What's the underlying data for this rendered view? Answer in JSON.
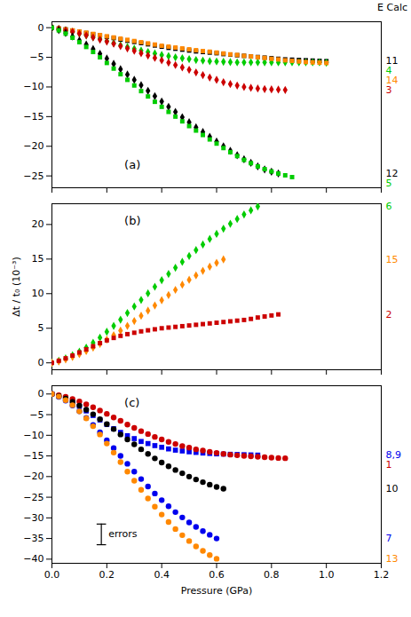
{
  "chart_data": [
    {
      "type": "scatter",
      "title": "E Calc",
      "x": [
        0.0,
        0.025,
        0.05,
        0.075,
        0.1,
        0.125,
        0.15,
        0.175,
        0.2,
        0.225,
        0.25,
        0.275,
        0.3,
        0.325,
        0.35,
        0.375,
        0.4,
        0.425,
        0.45,
        0.475,
        0.5,
        0.525,
        0.55,
        0.575,
        0.6,
        0.625,
        0.65,
        0.675,
        0.7,
        0.725,
        0.75,
        0.775,
        0.8,
        0.825,
        0.85,
        0.875,
        0.9,
        0.925,
        0.95,
        0.975,
        1.0
      ],
      "series": [
        {
          "name": "11",
          "color": "#000000",
          "marker": "square",
          "values": [
            0,
            -0.15,
            -0.3,
            -0.5,
            -0.7,
            -0.9,
            -1.1,
            -1.3,
            -1.55,
            -1.75,
            -2.0,
            -2.2,
            -2.4,
            -2.6,
            -2.8,
            -3.0,
            -3.2,
            -3.4,
            -3.55,
            -3.7,
            -3.85,
            -4.0,
            -4.1,
            -4.2,
            -4.3,
            -4.45,
            -4.55,
            -4.65,
            -4.75,
            -4.85,
            -4.95,
            -5.05,
            -5.15,
            -5.25,
            -5.35,
            -5.4,
            -5.45,
            -5.5,
            -5.55,
            -5.6,
            -5.65
          ]
        },
        {
          "name": "4",
          "color": "#00cc00",
          "marker": "diamond",
          "values": [
            0,
            -0.2,
            -0.45,
            -0.7,
            -1.0,
            -1.3,
            -1.6,
            -1.9,
            -2.25,
            -2.6,
            -2.95,
            -3.25,
            -3.55,
            -3.85,
            -4.1,
            -4.35,
            -4.6,
            -4.8,
            -5.0,
            -5.15,
            -5.3,
            -5.45,
            -5.55,
            -5.65,
            -5.7,
            -5.75,
            -5.8,
            -5.85,
            -5.85,
            -5.85,
            -5.85,
            -5.85,
            -5.85,
            -5.85,
            -5.85,
            -5.85,
            -5.85,
            -5.85,
            -5.85,
            -5.85,
            -5.9
          ]
        },
        {
          "name": "14",
          "color": "#ff8800",
          "marker": "square",
          "values": [
            0,
            -0.15,
            -0.3,
            -0.45,
            -0.65,
            -0.85,
            -1.05,
            -1.25,
            -1.45,
            -1.65,
            -1.85,
            -2.05,
            -2.25,
            -2.45,
            -2.65,
            -2.85,
            -3.05,
            -3.2,
            -3.35,
            -3.5,
            -3.65,
            -3.8,
            -3.95,
            -4.05,
            -4.2,
            -4.35,
            -4.5,
            -4.6,
            -4.75,
            -4.85,
            -5.0,
            -5.1,
            -5.25,
            -5.35,
            -5.5,
            -5.6,
            -5.7,
            -5.8,
            -5.85,
            -5.9,
            -5.95
          ]
        },
        {
          "name": "3",
          "color": "#cc0000",
          "marker": "diamond",
          "values": [
            0,
            -0.2,
            -0.45,
            -0.7,
            -1.0,
            -1.3,
            -1.65,
            -2.0,
            -2.35,
            -2.7,
            -3.1,
            -3.5,
            -3.9,
            -4.3,
            -4.7,
            -5.1,
            -5.5,
            -5.9,
            -6.3,
            -6.7,
            -7.1,
            -7.55,
            -8.0,
            -8.4,
            -8.8,
            -9.2,
            -9.5,
            -9.75,
            -10.0,
            -10.15,
            -10.25,
            -10.35,
            -10.4,
            -10.45,
            -10.5,
            null,
            null,
            null,
            null,
            null,
            null
          ]
        },
        {
          "name": "12",
          "color": "#000000",
          "marker": "diamond",
          "values": [
            0,
            -0.4,
            -0.9,
            -1.5,
            -2.15,
            -2.85,
            -3.6,
            -4.4,
            -5.2,
            -6.1,
            -7.0,
            -7.9,
            -8.8,
            -9.7,
            -10.65,
            -11.55,
            -12.45,
            -13.35,
            -14.2,
            -15.1,
            -15.95,
            -16.8,
            -17.6,
            -18.4,
            -19.2,
            -20.0,
            -20.75,
            -21.5,
            -22.2,
            -22.8,
            -23.4,
            -23.9,
            -24.3,
            -24.6,
            null,
            null,
            null,
            null,
            null,
            null,
            null
          ]
        },
        {
          "name": "5",
          "color": "#00cc00",
          "marker": "square",
          "values": [
            0,
            -0.45,
            -1.0,
            -1.7,
            -2.45,
            -3.25,
            -4.1,
            -5.0,
            -5.95,
            -6.9,
            -7.85,
            -8.8,
            -9.75,
            -10.7,
            -11.6,
            -12.5,
            -13.35,
            -14.2,
            -15.0,
            -15.8,
            -16.6,
            -17.35,
            -18.1,
            -18.85,
            -19.55,
            -20.3,
            -21.0,
            -21.65,
            -22.3,
            -22.85,
            -23.4,
            -23.85,
            -24.25,
            -24.6,
            -24.9,
            -25.2,
            null,
            null,
            null,
            null,
            null
          ]
        }
      ],
      "annotations": [
        {
          "text": "(a)"
        }
      ],
      "xlim": [
        0.0,
        1.2
      ],
      "xticks": [
        {
          "value": 0.0,
          "label": "0.0"
        },
        0.2,
        0.4,
        0.6,
        0.8,
        {
          "value": 1.0,
          "label": "1.0"
        },
        1.2
      ],
      "ylim": [
        -27,
        1
      ],
      "yticks": [
        0,
        -5,
        -10,
        -15,
        -20,
        -25
      ],
      "tick_labels": "y",
      "grid": false
    },
    {
      "type": "scatter",
      "ylabel": "Δt / t₀ (10⁻³)",
      "x": [
        0.0,
        0.025,
        0.05,
        0.075,
        0.1,
        0.125,
        0.15,
        0.175,
        0.2,
        0.225,
        0.25,
        0.275,
        0.3,
        0.325,
        0.35,
        0.375,
        0.4,
        0.425,
        0.45,
        0.475,
        0.5,
        0.525,
        0.55,
        0.575,
        0.6,
        0.625,
        0.65,
        0.675,
        0.7,
        0.725,
        0.75,
        0.775,
        0.8,
        0.825,
        0.85,
        0.875,
        0.9,
        0.925,
        0.95,
        0.975,
        1.0
      ],
      "series": [
        {
          "name": "6",
          "color": "#00cc00",
          "marker": "diamond",
          "values": [
            0,
            0.3,
            0.65,
            1.1,
            1.6,
            2.2,
            2.9,
            3.65,
            4.5,
            5.35,
            6.25,
            7.2,
            8.15,
            9.1,
            10.05,
            11.0,
            11.95,
            12.85,
            13.75,
            14.6,
            15.45,
            16.3,
            17.1,
            17.9,
            18.65,
            19.4,
            20.1,
            20.8,
            21.45,
            22.05,
            22.6,
            null,
            null,
            null,
            null,
            null,
            null,
            null,
            null,
            null,
            null
          ]
        },
        {
          "name": "15",
          "color": "#ff8800",
          "marker": "diamond",
          "values": [
            0,
            0.2,
            0.5,
            0.85,
            1.25,
            1.7,
            2.2,
            2.75,
            3.35,
            4.0,
            4.65,
            5.35,
            6.05,
            6.8,
            7.55,
            8.3,
            9.05,
            9.8,
            10.55,
            11.3,
            12.0,
            12.65,
            13.3,
            13.9,
            14.45,
            14.95,
            null,
            null,
            null,
            null,
            null,
            null,
            null,
            null,
            null,
            null,
            null,
            null,
            null,
            null,
            null
          ]
        },
        {
          "name": "2",
          "color": "#cc0000",
          "marker": "square",
          "values": [
            0,
            0.3,
            0.65,
            1.05,
            1.5,
            1.95,
            2.4,
            2.85,
            3.25,
            3.6,
            3.9,
            4.15,
            4.35,
            4.55,
            4.7,
            4.85,
            5.0,
            5.1,
            5.2,
            5.3,
            5.4,
            5.5,
            5.6,
            5.7,
            5.8,
            5.9,
            6.0,
            6.1,
            6.2,
            6.35,
            6.55,
            6.7,
            6.85,
            7.0,
            null,
            null,
            null,
            null,
            null,
            null,
            null
          ]
        }
      ],
      "annotations": [
        {
          "text": "(b)"
        }
      ],
      "xlim": [
        0.0,
        1.2
      ],
      "xticks": [
        {
          "value": 0.0,
          "label": "0.0"
        },
        0.2,
        0.4,
        0.6,
        0.8,
        {
          "value": 1.0,
          "label": "1.0"
        },
        1.2
      ],
      "ylim": [
        -1,
        23
      ],
      "yticks": [
        0,
        5,
        10,
        15,
        20
      ],
      "tick_labels": "y",
      "grid": false
    },
    {
      "type": "scatter",
      "xlabel": "Pressure (GPa)",
      "x": [
        0.0,
        0.025,
        0.05,
        0.075,
        0.1,
        0.125,
        0.15,
        0.175,
        0.2,
        0.225,
        0.25,
        0.275,
        0.3,
        0.325,
        0.35,
        0.375,
        0.4,
        0.425,
        0.45,
        0.475,
        0.5,
        0.525,
        0.55,
        0.575,
        0.6,
        0.625,
        0.65,
        0.675,
        0.7,
        0.725,
        0.75,
        0.775,
        0.8,
        0.825,
        0.85,
        0.875,
        0.9,
        0.925,
        0.95,
        0.975,
        1.0
      ],
      "series": [
        {
          "name": "8,9",
          "color": "#0000ee",
          "marker": "square",
          "values": [
            0,
            -0.5,
            -1.1,
            -2.0,
            -3.0,
            -4.1,
            -5.2,
            -6.3,
            -7.4,
            -8.4,
            -9.3,
            -10.1,
            -10.8,
            -11.5,
            -12.0,
            -12.5,
            -12.9,
            -13.3,
            -13.6,
            -13.8,
            -14.0,
            -14.15,
            -14.3,
            -14.4,
            -14.5,
            -14.55,
            -14.6,
            -14.65,
            -14.7,
            -14.75,
            -14.8,
            null,
            null,
            null,
            null,
            null,
            null,
            null,
            null,
            null,
            null
          ]
        },
        {
          "name": "1",
          "color": "#cc0000",
          "marker": "circle",
          "values": [
            0,
            -0.3,
            -0.7,
            -1.2,
            -1.8,
            -2.5,
            -3.2,
            -4.0,
            -4.8,
            -5.7,
            -6.5,
            -7.4,
            -8.2,
            -9.0,
            -9.7,
            -10.4,
            -11.0,
            -11.6,
            -12.1,
            -12.6,
            -13.0,
            -13.4,
            -13.7,
            -14.0,
            -14.25,
            -14.5,
            -14.7,
            -14.85,
            -15.0,
            -15.1,
            -15.2,
            -15.3,
            -15.4,
            -15.5,
            -15.55,
            null,
            null,
            null,
            null,
            null,
            null
          ]
        },
        {
          "name": "10",
          "color": "#000000",
          "marker": "circle",
          "values": [
            0,
            -0.5,
            -1.1,
            -1.9,
            -2.8,
            -3.8,
            -4.9,
            -6.1,
            -7.3,
            -8.5,
            -9.8,
            -11.0,
            -12.2,
            -13.4,
            -14.5,
            -15.6,
            -16.6,
            -17.5,
            -18.4,
            -19.2,
            -20.0,
            -20.7,
            -21.35,
            -21.95,
            -22.5,
            -22.95,
            null,
            null,
            null,
            null,
            null,
            null,
            null,
            null,
            null,
            null,
            null,
            null,
            null,
            null,
            null
          ]
        },
        {
          "name": "7",
          "color": "#0000ee",
          "marker": "circle",
          "values": [
            0,
            -0.7,
            -1.6,
            -2.8,
            -4.2,
            -5.8,
            -7.5,
            -9.3,
            -11.2,
            -13.1,
            -15.0,
            -16.9,
            -18.8,
            -20.6,
            -22.4,
            -24.1,
            -25.7,
            -27.2,
            -28.6,
            -29.9,
            -31.1,
            -32.2,
            -33.2,
            -34.1,
            -35.0,
            null,
            null,
            null,
            null,
            null,
            null,
            null,
            null,
            null,
            null,
            null,
            null,
            null,
            null,
            null,
            null
          ]
        },
        {
          "name": "13",
          "color": "#ff8800",
          "marker": "circle",
          "values": [
            0,
            -0.6,
            -1.5,
            -2.7,
            -4.2,
            -5.9,
            -7.8,
            -9.8,
            -12.0,
            -14.2,
            -16.5,
            -18.8,
            -21.0,
            -23.2,
            -25.3,
            -27.3,
            -29.2,
            -31.0,
            -32.7,
            -34.2,
            -35.6,
            -36.9,
            -38.0,
            -39.0,
            -39.9,
            null,
            null,
            null,
            null,
            null,
            null,
            null,
            null,
            null,
            null,
            null,
            null,
            null,
            null,
            null,
            null
          ]
        }
      ],
      "annotations": [
        {
          "text": "(c)"
        },
        {
          "text": "errors",
          "x": 0.18,
          "y": -34,
          "yerr": 2.5
        }
      ],
      "xlim": [
        0.0,
        1.2
      ],
      "xticks": [
        {
          "value": 0.0,
          "label": "0.0"
        },
        0.2,
        0.4,
        0.6,
        0.8,
        {
          "value": 1.0,
          "label": "1.0"
        },
        1.2
      ],
      "ylim": [
        -41,
        2
      ],
      "yticks": [
        0,
        -5,
        -10,
        -15,
        -20,
        -25,
        -30,
        -35,
        -40
      ],
      "grid": false
    }
  ]
}
